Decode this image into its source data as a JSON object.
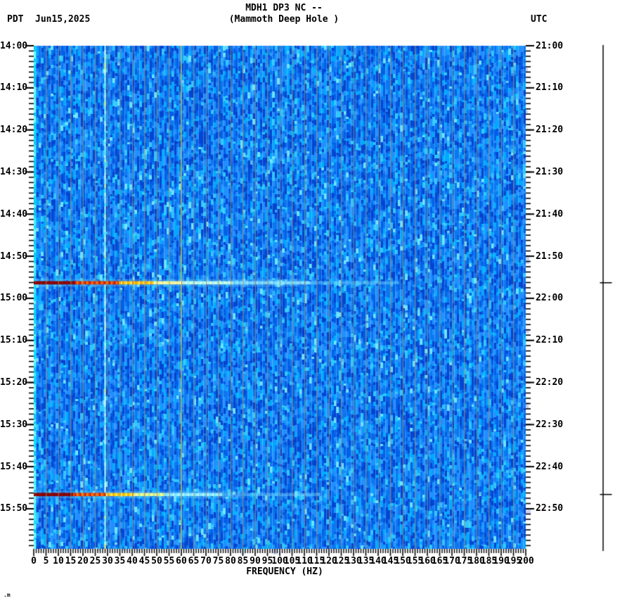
{
  "header": {
    "timezone_left": "PDT",
    "date": "Jun15,2025",
    "title_line1": "MDH1 DP3 NC --",
    "title_line2": "(Mammoth Deep Hole )",
    "timezone_right": "UTC"
  },
  "chart_data": {
    "type": "heatmap",
    "subtype": "seismic-spectrogram",
    "title": "MDH1 DP3 NC -- (Mammoth Deep Hole )",
    "station": "MDH1 DP3 NC",
    "station_description": "Mammoth Deep Hole",
    "xlabel": "FREQUENCY (HZ)",
    "x_range_hz": [
      0,
      200
    ],
    "x_major_tick_step_hz": 5,
    "x_minor_tick_step_hz": 1,
    "x_tick_labels": [
      "0",
      "5",
      "10",
      "15",
      "20",
      "25",
      "30",
      "35",
      "40",
      "45",
      "50",
      "55",
      "60",
      "65",
      "70",
      "75",
      "80",
      "85",
      "90",
      "95",
      "100",
      "105",
      "110",
      "115",
      "120",
      "125",
      "130",
      "135",
      "140",
      "145",
      "150",
      "155",
      "160",
      "165",
      "170",
      "175",
      "180",
      "185",
      "190",
      "195",
      "200"
    ],
    "y_left_axis": {
      "timezone": "PDT",
      "start": "14:00",
      "end": "16:00",
      "tick_labels": [
        "14:00",
        "14:10",
        "14:20",
        "14:30",
        "14:40",
        "14:50",
        "15:00",
        "15:10",
        "15:20",
        "15:30",
        "15:40",
        "15:50"
      ]
    },
    "y_right_axis": {
      "timezone": "UTC",
      "start": "21:00",
      "end": "23:00",
      "tick_labels": [
        "21:00",
        "21:10",
        "21:20",
        "21:30",
        "21:40",
        "21:50",
        "22:00",
        "22:10",
        "22:20",
        "22:30",
        "22:40",
        "22:50"
      ]
    },
    "time_span_minutes": 120,
    "major_time_tick_minutes": 10,
    "grid": {
      "vertical_line_every_hz": 5,
      "color": "#93826d"
    },
    "background": {
      "description": "mottled blue broadband noise floor",
      "base_color": "#0a74ee"
    },
    "persistent_spectral_lines": [
      {
        "hz": 0,
        "description": "bright cyan low-frequency band at left edge",
        "color": "#00e6ff"
      },
      {
        "hz": 29,
        "description": "continuous bright narrowband line",
        "color": "#84f2ff"
      },
      {
        "hz": 60,
        "description": "mains-hum narrowband line",
        "color": "#b4dc52"
      }
    ],
    "events": [
      {
        "time_pdt": "14:56",
        "time_utc": "21:56",
        "minutes_from_start": 56.3,
        "description": "broadband burst: dark red 0-16 Hz, red/orange/yellow stripes to ~55 Hz, cyan tail to ~150 Hz"
      },
      {
        "time_pdt": "15:47",
        "time_utc": "22:47",
        "minutes_from_start": 106.6,
        "description": "broadband burst: dark red 0-15 Hz, orange/yellow stripes to ~45 Hz, cyan tail to ~120 Hz"
      }
    ],
    "colormap_low_to_high": [
      "#0046c8",
      "#0a6cf0",
      "#1e90ff",
      "#00c8ff",
      "#84f2ff",
      "#e8ff80",
      "#ffd800",
      "#ff6400",
      "#d40000",
      "#8c0000"
    ]
  },
  "side_trace": {
    "description": "amplitude reference line with one tick per event",
    "event_marker_count": 2
  },
  "footer": {
    "corner_mark": ".m"
  }
}
